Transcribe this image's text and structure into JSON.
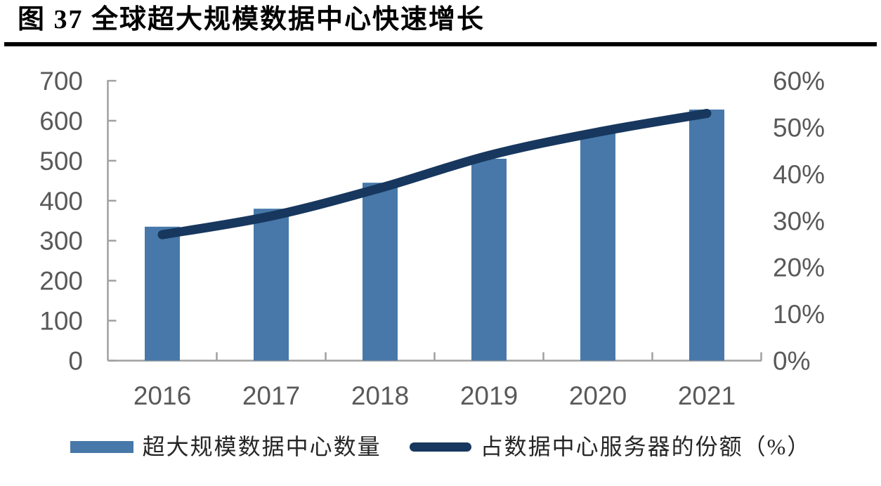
{
  "figure_title": "图 37 全球超大规模数据中心快速增长",
  "chart_data": {
    "type": "combo-bar-line",
    "categories": [
      "2016",
      "2017",
      "2018",
      "2019",
      "2020",
      "2021"
    ],
    "series": [
      {
        "name": "超大规模数据中心数量",
        "type": "bar",
        "axis": "left",
        "color": "#4778A9",
        "values": [
          335,
          380,
          445,
          505,
          570,
          628
        ]
      },
      {
        "name": "占数据中心服务器的份额（%）",
        "type": "line",
        "axis": "right",
        "color": "#17375E",
        "values": [
          27,
          31,
          37,
          44,
          49,
          53
        ]
      }
    ],
    "left_axis": {
      "min": 0,
      "max": 700,
      "step": 100,
      "labels": [
        "700",
        "600",
        "500",
        "400",
        "300",
        "200",
        "100",
        "0"
      ]
    },
    "right_axis": {
      "min": 0,
      "max": 60,
      "step": 10,
      "labels": [
        "60%",
        "50%",
        "40%",
        "30%",
        "20%",
        "10%",
        "0%"
      ]
    },
    "legend_position": "bottom",
    "grid": false,
    "axis_color": "#A0A0A0",
    "tick_label_color": "#595959"
  }
}
